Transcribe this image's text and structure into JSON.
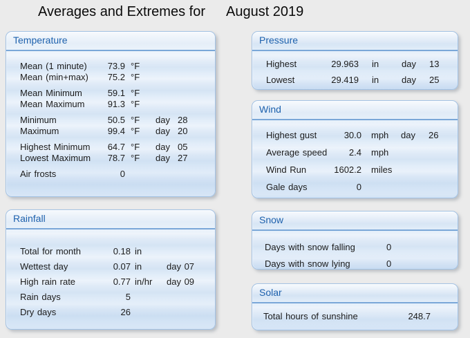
{
  "title": {
    "prefix": "Averages and Extremes for",
    "period": "August 2019"
  },
  "colors": {
    "page_bg": "#ebebeb",
    "panel_border": "#a3c2e4",
    "panel_header_text": "#1d61ad",
    "header_underline": "#7aa7d8",
    "body_text": "#1b1b1b"
  },
  "panels": {
    "temperature": {
      "title": "Temperature",
      "rows": [
        {
          "label": "Mean (1 minute)",
          "value": "73.9",
          "unit": "°F",
          "day_label": "",
          "day_value": ""
        },
        {
          "label": "Mean (min+max)",
          "value": "75.2",
          "unit": "°F",
          "day_label": "",
          "day_value": ""
        },
        {
          "label": "Mean Minimum",
          "value": "59.1",
          "unit": "°F",
          "day_label": "",
          "day_value": ""
        },
        {
          "label": "Mean Maximum",
          "value": "91.3",
          "unit": "°F",
          "day_label": "",
          "day_value": ""
        },
        {
          "label": "Minimum",
          "value": "50.5",
          "unit": "°F",
          "day_label": "day",
          "day_value": "28"
        },
        {
          "label": "Maximum",
          "value": "99.4",
          "unit": "°F",
          "day_label": "day",
          "day_value": "20"
        },
        {
          "label": "Highest Minimum",
          "value": "64.7",
          "unit": "°F",
          "day_label": "day",
          "day_value": "05"
        },
        {
          "label": "Lowest Maximum",
          "value": "78.7",
          "unit": "°F",
          "day_label": "day",
          "day_value": "27"
        },
        {
          "label": "Air frosts",
          "value": "0",
          "unit": "",
          "day_label": "",
          "day_value": ""
        }
      ]
    },
    "rainfall": {
      "title": "Rainfall",
      "rows": [
        {
          "label": "Total for month",
          "value": "0.18",
          "unit": "in",
          "day": ""
        },
        {
          "label": "Wettest day",
          "value": "0.07",
          "unit": "in",
          "day": "day 07"
        },
        {
          "label": "High rain rate",
          "value": "0.77",
          "unit": "in/hr",
          "day": "day 09"
        },
        {
          "label": "Rain days",
          "value": "5",
          "unit": "",
          "day": ""
        },
        {
          "label": "Dry days",
          "value": "26",
          "unit": "",
          "day": ""
        }
      ]
    },
    "pressure": {
      "title": "Pressure",
      "rows": [
        {
          "label": "Highest",
          "value": "29.963",
          "unit": "in",
          "day_label": "day",
          "day_value": "13"
        },
        {
          "label": "Lowest",
          "value": "29.419",
          "unit": "in",
          "day_label": "day",
          "day_value": "25"
        }
      ]
    },
    "wind": {
      "title": "Wind",
      "rows": [
        {
          "label": "Highest gust",
          "value": "30.0",
          "unit": "mph",
          "day_label": "day",
          "day_value": "26"
        },
        {
          "label": "Average speed",
          "value": "2.4",
          "unit": "mph",
          "day_label": "",
          "day_value": ""
        },
        {
          "label": "Wind Run",
          "value": "1602.2",
          "unit": "miles",
          "day_label": "",
          "day_value": ""
        },
        {
          "label": "Gale days",
          "value": "0",
          "unit": "",
          "day_label": "",
          "day_value": ""
        }
      ]
    },
    "snow": {
      "title": "Snow",
      "rows": [
        {
          "label": "Days with snow falling",
          "value": "0"
        },
        {
          "label": "Days with snow lying",
          "value": "0"
        }
      ]
    },
    "solar": {
      "title": "Solar",
      "rows": [
        {
          "label": "Total hours of sunshine",
          "value": "248.7"
        }
      ]
    }
  }
}
